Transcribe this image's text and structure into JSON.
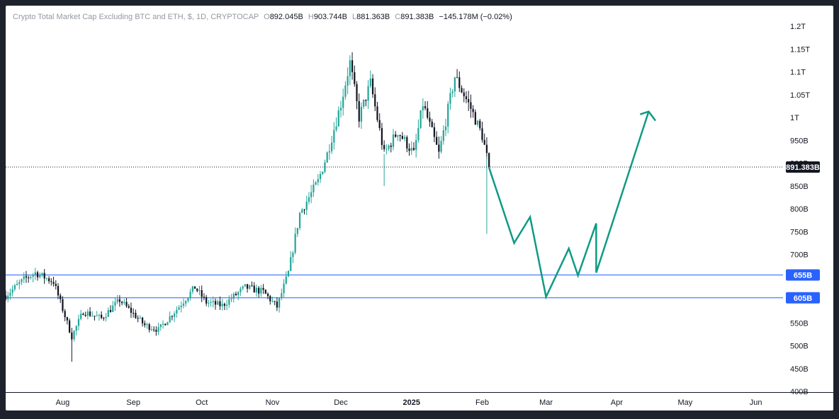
{
  "header": {
    "title": "Crypto Total Market Cap Excluding BTC and ETH, $, 1D, CRYPTOCAP",
    "ohlc": [
      {
        "key": "O",
        "value": "892.045B"
      },
      {
        "key": "H",
        "value": "903.744B"
      },
      {
        "key": "L",
        "value": "881.363B"
      },
      {
        "key": "C",
        "value": "891.383B"
      }
    ],
    "change": "−145.178M (−0.02%)"
  },
  "colors": {
    "up": "#26a69a",
    "down": "#131722",
    "projection": "#0f9a85",
    "level_line": "#2962ff",
    "badge_level": "#2962ff",
    "badge_price": "#131722"
  },
  "chart_data": {
    "type": "candlestick",
    "ylim": [
      400,
      1200
    ],
    "y_unit": "B",
    "y_ticks": [
      "1.2T",
      "1.15T",
      "1.1T",
      "1.05T",
      "1T",
      "950B",
      "900B",
      "850B",
      "800B",
      "750B",
      "700B",
      "650B",
      "600B",
      "550B",
      "500B",
      "450B",
      "400B"
    ],
    "y_tick_values": [
      1200,
      1150,
      1100,
      1050,
      1000,
      950,
      900,
      850,
      800,
      750,
      700,
      650,
      600,
      550,
      500,
      450,
      400
    ],
    "x_ticks": [
      {
        "label": "Aug",
        "date": "2024-08-01",
        "bold": false
      },
      {
        "label": "Sep",
        "date": "2024-09-01",
        "bold": false
      },
      {
        "label": "Oct",
        "date": "2024-10-01",
        "bold": false
      },
      {
        "label": "Nov",
        "date": "2024-11-01",
        "bold": false
      },
      {
        "label": "Dec",
        "date": "2024-12-01",
        "bold": false
      },
      {
        "label": "2025",
        "date": "2025-01-01",
        "bold": true
      },
      {
        "label": "Feb",
        "date": "2025-02-01",
        "bold": false
      },
      {
        "label": "Mar",
        "date": "2025-03-01",
        "bold": false
      },
      {
        "label": "Apr",
        "date": "2025-04-01",
        "bold": false
      },
      {
        "label": "May",
        "date": "2025-05-01",
        "bold": false
      },
      {
        "label": "Jun",
        "date": "2025-06-01",
        "bold": false
      }
    ],
    "x_range": [
      "2024-07-07",
      "2025-06-12"
    ],
    "keypoints": [
      {
        "date": "2024-07-07",
        "value": 610
      },
      {
        "date": "2024-07-15",
        "value": 645
      },
      {
        "date": "2024-07-20",
        "value": 660
      },
      {
        "date": "2024-07-28",
        "value": 640
      },
      {
        "date": "2024-08-05",
        "value": 520
      },
      {
        "date": "2024-08-10",
        "value": 575
      },
      {
        "date": "2024-08-18",
        "value": 560
      },
      {
        "date": "2024-08-26",
        "value": 600
      },
      {
        "date": "2024-09-06",
        "value": 545
      },
      {
        "date": "2024-09-12",
        "value": 535
      },
      {
        "date": "2024-09-20",
        "value": 580
      },
      {
        "date": "2024-09-28",
        "value": 628
      },
      {
        "date": "2024-10-03",
        "value": 595
      },
      {
        "date": "2024-10-10",
        "value": 588
      },
      {
        "date": "2024-10-20",
        "value": 628
      },
      {
        "date": "2024-10-28",
        "value": 618
      },
      {
        "date": "2024-11-03",
        "value": 585
      },
      {
        "date": "2024-11-08",
        "value": 660
      },
      {
        "date": "2024-11-13",
        "value": 790
      },
      {
        "date": "2024-11-21",
        "value": 860
      },
      {
        "date": "2024-11-25",
        "value": 920
      },
      {
        "date": "2024-12-01",
        "value": 1030
      },
      {
        "date": "2024-12-05",
        "value": 1120
      },
      {
        "date": "2024-12-09",
        "value": 1000
      },
      {
        "date": "2024-12-14",
        "value": 1075
      },
      {
        "date": "2024-12-20",
        "value": 920
      },
      {
        "date": "2024-12-26",
        "value": 970
      },
      {
        "date": "2025-01-02",
        "value": 920
      },
      {
        "date": "2025-01-06",
        "value": 1030
      },
      {
        "date": "2025-01-13",
        "value": 920
      },
      {
        "date": "2025-01-20",
        "value": 1090
      },
      {
        "date": "2025-01-27",
        "value": 1020
      },
      {
        "date": "2025-02-01",
        "value": 960
      },
      {
        "date": "2025-02-04",
        "value": 891.383
      }
    ],
    "last_price": 891.383,
    "last_price_label": "891.383B",
    "levels": [
      {
        "value": 655,
        "label": "655B"
      },
      {
        "value": 605,
        "label": "605B"
      }
    ],
    "projection": [
      {
        "date": "2025-02-04",
        "value": 890
      },
      {
        "date": "2025-02-15",
        "value": 725
      },
      {
        "date": "2025-02-22",
        "value": 782
      },
      {
        "date": "2025-03-01",
        "value": 607
      },
      {
        "date": "2025-03-11",
        "value": 713
      },
      {
        "date": "2025-03-15",
        "value": 654
      },
      {
        "date": "2025-03-23",
        "value": 768
      },
      {
        "date": "2025-03-23",
        "value": 660
      },
      {
        "date": "2025-04-15",
        "value": 1013
      },
      {
        "date": "2025-04-18",
        "value": 993
      }
    ]
  }
}
